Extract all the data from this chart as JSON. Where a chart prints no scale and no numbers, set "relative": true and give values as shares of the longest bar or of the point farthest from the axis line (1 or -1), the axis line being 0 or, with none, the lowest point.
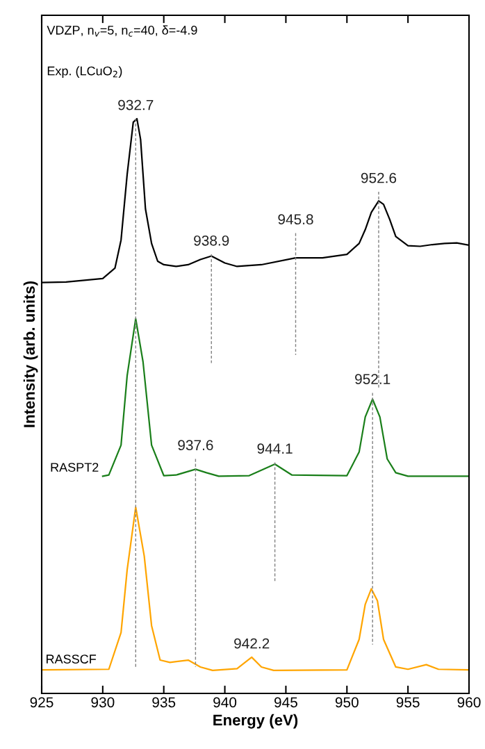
{
  "chart_data": {
    "type": "line",
    "relative": true,
    "xlabel": "Energy (eV)",
    "ylabel": "Intensity (arb. units)",
    "xlim": [
      925,
      960
    ],
    "xticks": [
      925,
      930,
      935,
      940,
      945,
      950,
      955,
      960
    ],
    "tick_labels": "x",
    "grid": false,
    "legend": false,
    "annotations": [
      "VDZP, n$_{v}$=5, n$_{c}$=40, δ=-4.9",
      "Exp. (LCuO$_{2}$)",
      {
        "text": "932.7",
        "x": 932.7,
        "y": 1.0
      },
      {
        "text": "938.9",
        "x": 938.9,
        "y": 0.764
      },
      {
        "text": "945.8",
        "x": 945.8,
        "y": 0.801
      },
      {
        "text": "952.6",
        "x": 952.6,
        "y": 0.873
      },
      {
        "text": "937.6",
        "x": 937.6,
        "y": 0.408
      },
      {
        "text": "944.1",
        "x": 944.1,
        "y": 0.402
      },
      {
        "text": "952.1",
        "x": 952.1,
        "y": 0.523
      },
      {
        "text": "942.2",
        "x": 942.2,
        "y": 0.063
      }
    ],
    "series": [
      {
        "color": "#000000",
        "x": [
          925,
          927,
          930,
          931,
          931.5,
          932,
          932.5,
          932.8,
          933.1,
          933.5,
          934,
          934.5,
          935,
          936,
          937,
          938,
          938.9,
          940,
          941,
          943,
          945.8,
          948,
          950,
          951,
          951.5,
          952,
          952.6,
          953,
          953.5,
          954,
          955,
          956,
          957,
          958,
          959,
          960
        ],
        "values": [
          0.715,
          0.716,
          0.722,
          0.74,
          0.789,
          0.903,
          0.994,
          1.0,
          0.964,
          0.843,
          0.783,
          0.752,
          0.746,
          0.743,
          0.746,
          0.755,
          0.761,
          0.749,
          0.743,
          0.746,
          0.758,
          0.758,
          0.764,
          0.783,
          0.807,
          0.837,
          0.857,
          0.851,
          0.825,
          0.795,
          0.779,
          0.778,
          0.781,
          0.783,
          0.784,
          0.78
        ]
      },
      {
        "name": "RASPT2",
        "color": "#1a7f1a",
        "x": [
          930,
          930.5,
          931.5,
          932,
          932.7,
          933.3,
          934,
          935,
          936,
          937.6,
          938.5,
          939.5,
          942,
          944.1,
          945.5,
          950,
          951,
          951.5,
          952.1,
          952.7,
          953.3,
          954,
          955,
          960
        ],
        "values": [
          0.378,
          0.38,
          0.432,
          0.553,
          0.652,
          0.577,
          0.432,
          0.379,
          0.38,
          0.39,
          0.384,
          0.378,
          0.379,
          0.399,
          0.38,
          0.379,
          0.42,
          0.481,
          0.512,
          0.481,
          0.408,
          0.384,
          0.378,
          0.378
        ]
      },
      {
        "name": "RASSCF",
        "color": "#ffa500",
        "x": [
          925,
          930.5,
          931.5,
          932,
          932.7,
          933.4,
          934,
          934.7,
          935.5,
          937,
          938,
          939,
          941,
          942.2,
          943,
          944,
          950,
          951,
          951.5,
          952,
          952.5,
          953,
          954,
          955,
          956.5,
          957.5,
          960
        ],
        "values": [
          0.041,
          0.042,
          0.106,
          0.215,
          0.324,
          0.239,
          0.118,
          0.058,
          0.054,
          0.058,
          0.046,
          0.04,
          0.043,
          0.063,
          0.046,
          0.04,
          0.041,
          0.094,
          0.155,
          0.182,
          0.161,
          0.094,
          0.046,
          0.042,
          0.05,
          0.042,
          0.041
        ]
      },
      {
        "color": "#808080",
        "line_style": "dashed",
        "x": [
          932.7,
          932.7
        ],
        "values": [
          1.0,
          0.043
        ]
      },
      {
        "color": "#808080",
        "line_style": "dashed",
        "x": [
          938.9,
          938.9
        ],
        "values": [
          0.764,
          0.575
        ]
      },
      {
        "color": "#808080",
        "line_style": "dashed",
        "x": [
          945.8,
          945.8
        ],
        "values": [
          0.801,
          0.589
        ]
      },
      {
        "color": "#808080",
        "line_style": "dashed",
        "x": [
          952.6,
          952.6
        ],
        "values": [
          0.873,
          0.531
        ]
      },
      {
        "color": "#808080",
        "line_style": "dashed",
        "x": [
          937.6,
          937.6
        ],
        "values": [
          0.408,
          0.046
        ]
      },
      {
        "color": "#808080",
        "line_style": "dashed",
        "x": [
          944.1,
          944.1
        ],
        "values": [
          0.402,
          0.193
        ]
      },
      {
        "color": "#808080",
        "line_style": "dashed",
        "x": [
          952.1,
          952.1
        ],
        "values": [
          0.523,
          0.085
        ]
      }
    ]
  }
}
